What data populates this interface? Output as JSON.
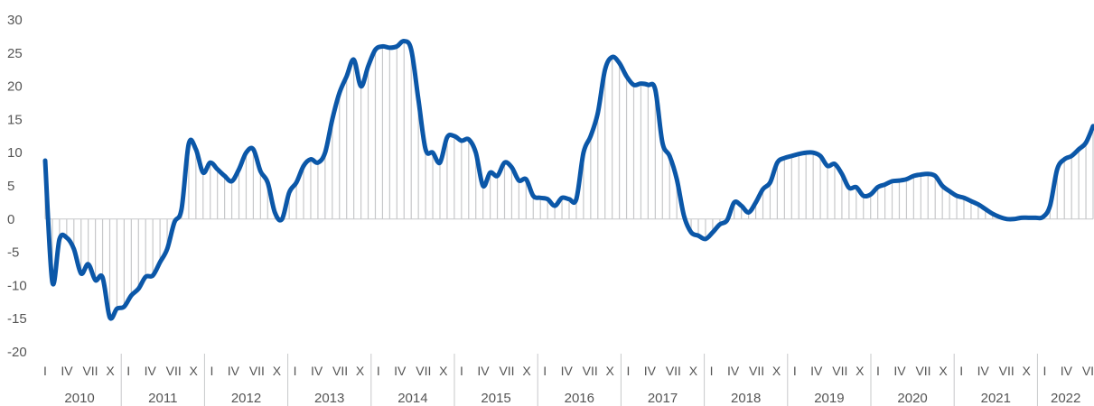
{
  "chart_data": {
    "type": "line",
    "title": "",
    "xlabel": "",
    "ylabel": "",
    "ylim": [
      -20,
      30
    ],
    "yticks": [
      "30",
      "25",
      "20",
      "15",
      "10",
      "5",
      "0",
      "-5",
      "-10",
      "-15",
      "-20"
    ],
    "grid": false,
    "legend": "none",
    "x_quarter_labels": [
      "I",
      "IV",
      "VII",
      "X"
    ],
    "years": [
      "2010",
      "2011",
      "2012",
      "2013",
      "2014",
      "2015",
      "2016",
      "2017",
      "2018",
      "2019",
      "2020",
      "2021",
      "2022"
    ],
    "last_year_quarter_labels": [
      "I",
      "IV",
      "VII"
    ],
    "series": [
      {
        "values": [
          8.8,
          -9.5,
          -3.0,
          -2.8,
          -4.5,
          -8.2,
          -6.8,
          -9.2,
          -8.8,
          -14.8,
          -13.5,
          -13.2,
          -11.5,
          -10.5,
          -8.7,
          -8.5,
          -6.5,
          -4.5,
          -0.5,
          1.5,
          11.3,
          10.5,
          7.0,
          8.5,
          7.5,
          6.5,
          5.7,
          7.5,
          10.0,
          10.5,
          7.2,
          5.5,
          1.0,
          0.0,
          4.0,
          5.5,
          8.0,
          9.0,
          8.5,
          10.0,
          15.0,
          19.0,
          21.5,
          24.0,
          20.0,
          23.0,
          25.5,
          26.0,
          25.8,
          26.0,
          26.8,
          25.5,
          18.0,
          10.5,
          10.0,
          8.5,
          12.3,
          12.5,
          11.8,
          12.0,
          10.0,
          5.0,
          7.0,
          6.5,
          8.5,
          7.8,
          5.8,
          6.0,
          3.5,
          3.2,
          3.0,
          2.0,
          3.2,
          3.0,
          3.0,
          10.0,
          12.5,
          16.0,
          22.5,
          24.4,
          23.5,
          21.5,
          20.2,
          20.4,
          20.2,
          19.5,
          11.5,
          9.5,
          6.0,
          0.5,
          -2.0,
          -2.5,
          -3.0,
          -2.0,
          -0.8,
          -0.2,
          2.5,
          2.0,
          1.0,
          2.5,
          4.5,
          5.5,
          8.5,
          9.2,
          9.5,
          9.8,
          10.0,
          10.0,
          9.5,
          8.0,
          8.3,
          6.8,
          4.7,
          4.8,
          3.5,
          3.7,
          4.8,
          5.2,
          5.7,
          5.8,
          6.0,
          6.5,
          6.7,
          6.8,
          6.5,
          5.0,
          4.2,
          3.5,
          3.2,
          2.7,
          2.2,
          1.5,
          0.8,
          0.3,
          0.0,
          0.0,
          0.2,
          0.2,
          0.2,
          0.3,
          2.0,
          7.5,
          9.0,
          9.5,
          10.5,
          11.5,
          14.0
        ]
      }
    ]
  }
}
